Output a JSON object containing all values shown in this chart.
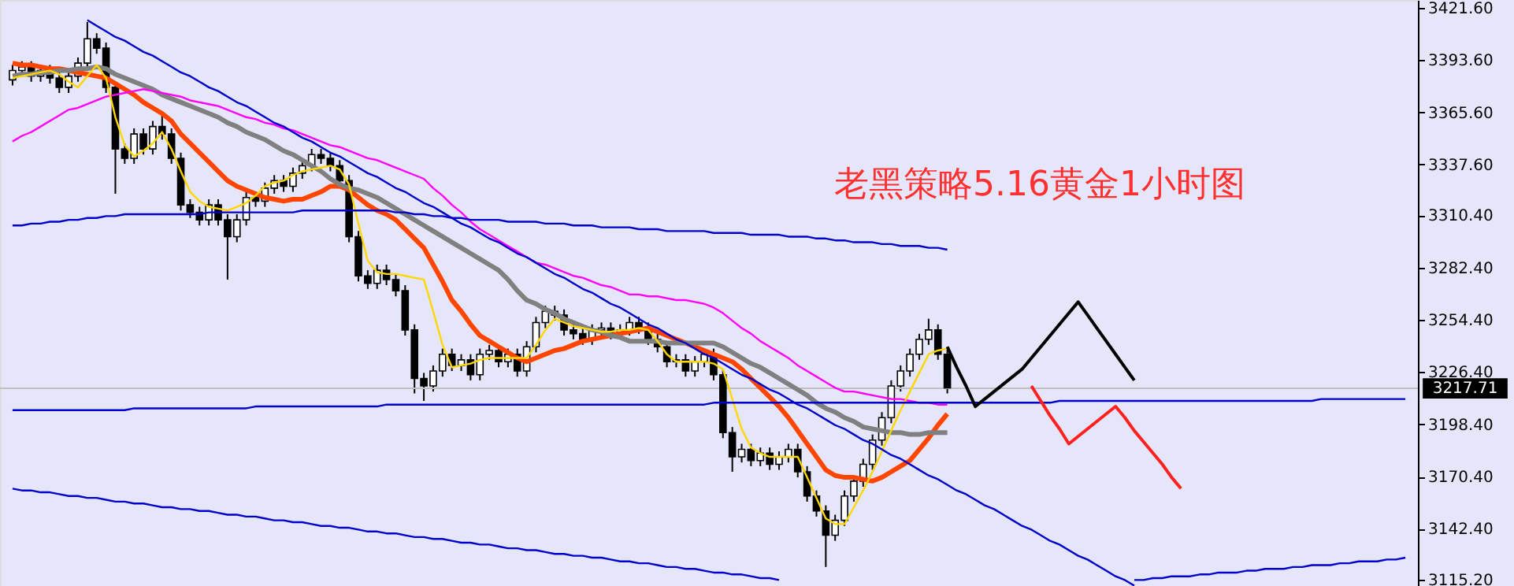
{
  "chart_data": {
    "type": "candlestick",
    "title": "老黑策略5.16黄金1小时图",
    "categories": [
      null,
      null,
      null,
      null,
      null,
      null,
      null,
      null,
      null,
      null,
      null,
      null,
      null,
      null,
      null,
      null,
      null,
      null,
      null,
      null,
      null,
      null,
      null,
      null,
      null,
      null,
      null,
      null,
      null,
      null,
      null,
      null,
      null,
      null,
      null,
      null,
      null,
      null,
      null,
      null,
      null,
      null,
      null,
      null,
      null,
      null,
      null,
      null,
      null,
      null,
      null,
      null,
      null,
      null,
      null,
      null,
      null,
      null,
      null,
      null,
      null,
      null,
      null,
      null,
      null,
      null,
      null,
      null,
      null,
      null,
      null,
      null,
      null,
      null,
      null,
      null,
      null,
      null,
      null,
      null,
      null,
      null,
      null,
      null,
      null,
      null,
      null,
      null,
      null,
      null,
      null,
      null,
      null,
      null,
      null,
      null,
      null,
      null,
      null,
      null,
      null,
      null,
      null,
      null,
      null,
      null,
      null,
      null,
      null,
      null,
      null,
      null,
      null,
      null,
      null,
      null,
      null,
      null,
      null,
      null,
      null,
      null,
      null,
      null,
      null,
      null,
      null,
      null,
      null,
      null,
      null,
      null,
      null,
      null,
      null,
      null,
      null,
      null,
      null,
      null,
      null,
      null,
      null,
      null,
      null,
      null,
      null,
      null,
      null,
      null
    ],
    "ohlc": [
      [
        3383,
        3391,
        3380,
        3388
      ],
      [
        3388,
        3393,
        3385,
        3390
      ],
      [
        3390,
        3393,
        3382,
        3385
      ],
      [
        3385,
        3391,
        3382,
        3388
      ],
      [
        3388,
        3391,
        3381,
        3384
      ],
      [
        3384,
        3387,
        3376,
        3379
      ],
      [
        3379,
        3388,
        3376,
        3385
      ],
      [
        3385,
        3395,
        3382,
        3392
      ],
      [
        3392,
        3414,
        3389,
        3405
      ],
      [
        3405,
        3408,
        3397,
        3400
      ],
      [
        3400,
        3403,
        3376,
        3379
      ],
      [
        3379,
        3382,
        3322,
        3346
      ],
      [
        3346,
        3349,
        3338,
        3341
      ],
      [
        3341,
        3357,
        3338,
        3354
      ],
      [
        3354,
        3357,
        3343,
        3346
      ],
      [
        3346,
        3361,
        3343,
        3358
      ],
      [
        3358,
        3365,
        3351,
        3354
      ],
      [
        3354,
        3357,
        3338,
        3341
      ],
      [
        3341,
        3344,
        3313,
        3316
      ],
      [
        3316,
        3319,
        3309,
        3312
      ],
      [
        3312,
        3315,
        3305,
        3308
      ],
      [
        3308,
        3319,
        3305,
        3316
      ],
      [
        3316,
        3319,
        3305,
        3308
      ],
      [
        3308,
        3311,
        3276,
        3299
      ],
      [
        3299,
        3311,
        3296,
        3308
      ],
      [
        3308,
        3323,
        3305,
        3320
      ],
      [
        3320,
        3323,
        3315,
        3318
      ],
      [
        3318,
        3328,
        3315,
        3325
      ],
      [
        3325,
        3332,
        3322,
        3329
      ],
      [
        3329,
        3332,
        3323,
        3326
      ],
      [
        3326,
        3336,
        3323,
        3333
      ],
      [
        3333,
        3340,
        3330,
        3337
      ],
      [
        3337,
        3346,
        3334,
        3343
      ],
      [
        3343,
        3346,
        3338,
        3341
      ],
      [
        3341,
        3344,
        3334,
        3337
      ],
      [
        3337,
        3340,
        3326,
        3329
      ],
      [
        3329,
        3332,
        3296,
        3299
      ],
      [
        3299,
        3302,
        3275,
        3278
      ],
      [
        3278,
        3281,
        3271,
        3274
      ],
      [
        3274,
        3284,
        3271,
        3281
      ],
      [
        3281,
        3284,
        3273,
        3276
      ],
      [
        3276,
        3279,
        3267,
        3270
      ],
      [
        3270,
        3273,
        3246,
        3249
      ],
      [
        3249,
        3252,
        3215,
        3223
      ],
      [
        3223,
        3226,
        3211,
        3219
      ],
      [
        3219,
        3230,
        3216,
        3227
      ],
      [
        3227,
        3239,
        3224,
        3236
      ],
      [
        3236,
        3239,
        3227,
        3230
      ],
      [
        3230,
        3236,
        3227,
        3233
      ],
      [
        3233,
        3236,
        3222,
        3225
      ],
      [
        3225,
        3239,
        3222,
        3236
      ],
      [
        3236,
        3241,
        3233,
        3238
      ],
      [
        3238,
        3241,
        3229,
        3232
      ],
      [
        3232,
        3239,
        3229,
        3236
      ],
      [
        3236,
        3239,
        3224,
        3227
      ],
      [
        3227,
        3243,
        3224,
        3240
      ],
      [
        3240,
        3256,
        3237,
        3253
      ],
      [
        3253,
        3262,
        3250,
        3259
      ],
      [
        3259,
        3262,
        3254,
        3257
      ],
      [
        3257,
        3260,
        3246,
        3249
      ],
      [
        3249,
        3252,
        3244,
        3247
      ],
      [
        3247,
        3250,
        3241,
        3244
      ],
      [
        3244,
        3252,
        3241,
        3249
      ],
      [
        3249,
        3253,
        3246,
        3250
      ],
      [
        3250,
        3253,
        3244,
        3247
      ],
      [
        3247,
        3252,
        3244,
        3249
      ],
      [
        3249,
        3256,
        3246,
        3253
      ],
      [
        3253,
        3256,
        3247,
        3250
      ],
      [
        3250,
        3253,
        3241,
        3244
      ],
      [
        3244,
        3247,
        3237,
        3240
      ],
      [
        3240,
        3243,
        3229,
        3232
      ],
      [
        3232,
        3236,
        3229,
        3233
      ],
      [
        3233,
        3236,
        3224,
        3227
      ],
      [
        3227,
        3235,
        3224,
        3232
      ],
      [
        3232,
        3239,
        3229,
        3236
      ],
      [
        3236,
        3239,
        3222,
        3225
      ],
      [
        3225,
        3228,
        3191,
        3194
      ],
      [
        3194,
        3197,
        3173,
        3181
      ],
      [
        3181,
        3188,
        3178,
        3185
      ],
      [
        3185,
        3188,
        3176,
        3179
      ],
      [
        3179,
        3186,
        3176,
        3183
      ],
      [
        3183,
        3186,
        3174,
        3177
      ],
      [
        3177,
        3184,
        3174,
        3181
      ],
      [
        3181,
        3188,
        3178,
        3185
      ],
      [
        3185,
        3188,
        3170,
        3173
      ],
      [
        3173,
        3176,
        3157,
        3160
      ],
      [
        3160,
        3163,
        3149,
        3152
      ],
      [
        3152,
        3155,
        3122,
        3139
      ],
      [
        3139,
        3150,
        3136,
        3147
      ],
      [
        3147,
        3163,
        3144,
        3160
      ],
      [
        3160,
        3171,
        3157,
        3168
      ],
      [
        3168,
        3180,
        3165,
        3177
      ],
      [
        3177,
        3193,
        3174,
        3190
      ],
      [
        3190,
        3205,
        3187,
        3202
      ],
      [
        3202,
        3222,
        3199,
        3219
      ],
      [
        3219,
        3230,
        3216,
        3227
      ],
      [
        3227,
        3239,
        3224,
        3236
      ],
      [
        3236,
        3247,
        3233,
        3244
      ],
      [
        3244,
        3255,
        3241,
        3249
      ],
      [
        3249,
        3252,
        3233,
        3236
      ],
      [
        3236,
        3239,
        3215,
        3218
      ],
      null,
      null,
      null,
      null,
      null,
      null,
      null,
      null,
      null,
      null,
      null,
      null,
      null,
      null,
      null,
      null,
      null,
      null,
      null,
      null,
      null,
      null,
      null,
      null,
      null,
      null,
      null,
      null,
      null,
      null,
      null,
      null,
      null,
      null,
      null,
      null,
      null,
      null,
      null,
      null,
      null,
      null,
      null,
      null,
      null,
      null,
      null,
      null,
      null
    ],
    "series": [
      {
        "type": "line",
        "color": "#ff4500",
        "values": [
          3392,
          3391,
          3391,
          3390,
          3389,
          3389,
          3388,
          3387,
          3386,
          3385,
          3384,
          3381,
          3378,
          3375,
          3371,
          3368,
          3365,
          3361,
          3354,
          3349,
          3344,
          3339,
          3334,
          3329,
          3326,
          3324,
          3322,
          3320,
          3319,
          3318,
          3319,
          3319,
          3321,
          3323,
          3326,
          3326,
          3324,
          3320,
          3316,
          3313,
          3311,
          3308,
          3303,
          3298,
          3293,
          3284,
          3275,
          3265,
          3259,
          3252,
          3246,
          3243,
          3240,
          3237,
          3234,
          3232,
          3234,
          3236,
          3238,
          3239,
          3241,
          3243,
          3244,
          3245,
          3246,
          3247,
          3248,
          3249,
          3250,
          3248,
          3246,
          3244,
          3242,
          3240,
          3238,
          3236,
          3234,
          3232,
          3228,
          3223,
          3218,
          3213,
          3208,
          3202,
          3195,
          3188,
          3181,
          3174,
          3171,
          3170,
          3170,
          3169,
          3168,
          3170,
          3173,
          3176,
          3179,
          3185,
          3191,
          3198,
          3204,
          null,
          null,
          null,
          null,
          null,
          null,
          null,
          null,
          null,
          null,
          null,
          null,
          null,
          null,
          null,
          null,
          null,
          null,
          null,
          null,
          null,
          null,
          null,
          null,
          null,
          null,
          null,
          null,
          null,
          null,
          null,
          null,
          null,
          null,
          null,
          null,
          null,
          null,
          null,
          null,
          null,
          null,
          null,
          null,
          null,
          null,
          null,
          null,
          null
        ]
      },
      {
        "type": "line",
        "color": "#808080",
        "values": [
          3385,
          3386,
          3386,
          3387,
          3387,
          3388,
          3388,
          3389,
          3389,
          3390,
          3389,
          3386,
          3384,
          3382,
          3380,
          3378,
          3375,
          3373,
          3371,
          3369,
          3367,
          3365,
          3363,
          3360,
          3358,
          3355,
          3353,
          3351,
          3348,
          3345,
          3343,
          3340,
          3337,
          3334,
          3330,
          3327,
          3325,
          3324,
          3322,
          3320,
          3317,
          3314,
          3311,
          3308,
          3305,
          3302,
          3299,
          3296,
          3293,
          3290,
          3287,
          3284,
          3281,
          3276,
          3270,
          3265,
          3263,
          3260,
          3258,
          3255,
          3253,
          3251,
          3249,
          3248,
          3246,
          3245,
          3243,
          3243,
          3243,
          3243,
          3242,
          3242,
          3242,
          3242,
          3242,
          3242,
          3240,
          3237,
          3234,
          3231,
          3229,
          3226,
          3223,
          3220,
          3217,
          3214,
          3210,
          3207,
          3205,
          3202,
          3200,
          3197,
          3196,
          3195,
          3194,
          3194,
          3193,
          3193,
          3194,
          3194,
          3194,
          null,
          null,
          null,
          null,
          null,
          null,
          null,
          null,
          null,
          null,
          null,
          null,
          null,
          null,
          null,
          null,
          null,
          null,
          null,
          null,
          null,
          null,
          null,
          null,
          null,
          null,
          null,
          null,
          null,
          null,
          null,
          null,
          null,
          null,
          null,
          null,
          null,
          null,
          null,
          null,
          null,
          null,
          null,
          null,
          null,
          null,
          null,
          null,
          null
        ]
      },
      {
        "type": "line",
        "color": "#ff00ff",
        "values": [
          3350,
          3353,
          3355,
          3358,
          3361,
          3364,
          3367,
          3368,
          3370,
          3372,
          3374,
          3375,
          3376,
          3377,
          3378,
          3377,
          3376,
          3375,
          3374,
          3372,
          3371,
          3370,
          3369,
          3367,
          3365,
          3363,
          3362,
          3360,
          3359,
          3357,
          3356,
          3354,
          3352,
          3350,
          3348,
          3347,
          3345,
          3343,
          3341,
          3340,
          3338,
          3336,
          3334,
          3332,
          3330,
          3325,
          3321,
          3316,
          3312,
          3307,
          3303,
          3300,
          3297,
          3294,
          3291,
          3288,
          3285,
          3284,
          3282,
          3280,
          3278,
          3277,
          3275,
          3273,
          3272,
          3270,
          3268,
          3268,
          3267,
          3267,
          3266,
          3265,
          3265,
          3264,
          3263,
          3261,
          3258,
          3254,
          3250,
          3247,
          3243,
          3240,
          3237,
          3234,
          3230,
          3227,
          3224,
          3221,
          3218,
          3216,
          3216,
          3215,
          3214,
          3213,
          3212,
          3212,
          3211,
          3210,
          3210,
          3209,
          3209,
          null,
          null,
          null,
          null,
          null,
          null,
          null,
          null,
          null,
          null,
          null,
          null,
          null,
          null,
          null,
          null,
          null,
          null,
          null,
          null,
          null,
          null,
          null,
          null,
          null,
          null,
          null,
          null,
          null,
          null,
          null,
          null,
          null,
          null,
          null,
          null,
          null,
          null,
          null,
          null,
          null,
          null,
          null,
          null,
          null,
          null,
          null,
          null,
          null
        ]
      },
      {
        "type": "line",
        "color": "#ffd700",
        "values": [
          3384,
          3385,
          3386,
          3387,
          3388,
          3386,
          3382,
          3379,
          3385,
          3391,
          3384,
          3363,
          3348,
          3342,
          3345,
          3349,
          3355,
          3346,
          3334,
          3323,
          3318,
          3315,
          3314,
          3313,
          3315,
          3317,
          3321,
          3326,
          3328,
          3329,
          3332,
          3334,
          3335,
          3336,
          3337,
          3335,
          3327,
          3306,
          3286,
          3280,
          3279,
          3279,
          3278,
          3277,
          3276,
          3259,
          3241,
          3229,
          3230,
          3231,
          3233,
          3234,
          3234,
          3234,
          3234,
          3234,
          3241,
          3249,
          3255,
          3253,
          3251,
          3250,
          3249,
          3248,
          3248,
          3249,
          3249,
          3250,
          3249,
          3243,
          3236,
          3232,
          3232,
          3232,
          3232,
          3231,
          3228,
          3212,
          3196,
          3186,
          3183,
          3181,
          3181,
          3181,
          3181,
          3170,
          3159,
          3148,
          3145,
          3145,
          3154,
          3163,
          3173,
          3184,
          3195,
          3206,
          3216,
          3226,
          3236,
          3238,
          3239,
          null,
          null,
          null,
          null,
          null,
          null,
          null,
          null,
          null,
          null,
          null,
          null,
          null,
          null,
          null,
          null,
          null,
          null,
          null,
          null,
          null,
          null,
          null,
          null,
          null,
          null,
          null,
          null,
          null,
          null,
          null,
          null,
          null,
          null,
          null,
          null,
          null,
          null,
          null,
          null,
          null,
          null,
          null,
          null,
          null,
          null,
          null,
          null,
          null
        ]
      },
      {
        "type": "line",
        "color": "#0000cd",
        "values": [
          null,
          null,
          null,
          null,
          null,
          null,
          null,
          null,
          3415,
          3412,
          3409,
          3406,
          3404,
          3401,
          3398,
          3396,
          3393,
          3390,
          3387,
          3385,
          3382,
          3379,
          3377,
          3374,
          3371,
          3369,
          3366,
          3363,
          3360,
          3358,
          3355,
          3352,
          3350,
          3347,
          3344,
          3342,
          3339,
          3336,
          3333,
          3331,
          3328,
          3325,
          3323,
          3320,
          3317,
          3315,
          3312,
          3309,
          3306,
          3304,
          3301,
          3298,
          3296,
          3293,
          3290,
          3288,
          3285,
          3282,
          3279,
          3277,
          3274,
          3271,
          3269,
          3266,
          3263,
          3261,
          3258,
          3255,
          3252,
          3250,
          3247,
          3244,
          3242,
          3239,
          3236,
          3234,
          3231,
          3228,
          3225,
          3223,
          3220,
          3217,
          3215,
          3212,
          3209,
          3207,
          3204,
          3201,
          3198,
          3196,
          3193,
          3190,
          3188,
          3185,
          3182,
          3180,
          3177,
          3174,
          3171,
          3169,
          3166,
          3163,
          3161,
          3158,
          3155,
          3153,
          3150,
          3147,
          3144,
          3142,
          3139,
          3136,
          3134,
          3131,
          3128,
          3126,
          3123,
          3120,
          3117,
          3115,
          3112,
          null,
          null,
          null,
          null,
          null,
          null,
          null,
          null,
          null,
          null,
          null,
          null,
          null,
          null,
          null,
          null,
          null,
          null,
          null,
          null,
          null,
          null,
          null,
          null,
          null,
          null,
          null,
          null,
          null
        ]
      },
      {
        "type": "line",
        "color": "#0000cd",
        "values": [
          3206,
          3206,
          3206,
          3206,
          3206,
          3206,
          3206,
          3206,
          3206,
          3206,
          3206,
          3206,
          3206,
          3207,
          3207,
          3207,
          3207,
          3207,
          3207,
          3207,
          3207,
          3207,
          3207,
          3207,
          3207,
          3207,
          3208,
          3208,
          3208,
          3208,
          3208,
          3208,
          3208,
          3208,
          3208,
          3208,
          3208,
          3208,
          3208,
          3208,
          3209,
          3209,
          3209,
          3209,
          3209,
          3209,
          3209,
          3209,
          3209,
          3209,
          3209,
          3209,
          3209,
          3209,
          3209,
          3209,
          3209,
          3209,
          3209,
          3209,
          3209,
          3209,
          3209,
          3209,
          3209,
          3209,
          3209,
          3209,
          3209,
          3209,
          3209,
          3209,
          3209,
          3209,
          3209,
          3210,
          3210,
          3210,
          3210,
          3210,
          3210,
          3210,
          3210,
          3210,
          3210,
          3210,
          3210,
          3210,
          3210,
          3210,
          3210,
          3210,
          3210,
          3210,
          3210,
          3210,
          3210,
          3210,
          3210,
          3210,
          3210,
          3210,
          3210,
          3210,
          3210,
          3210,
          3210,
          3210,
          3210,
          3210,
          3210,
          3210,
          3211,
          3211,
          3211,
          3211,
          3211,
          3211,
          3211,
          3211,
          3211,
          3211,
          3211,
          3211,
          3211,
          3211,
          3211,
          3211,
          3211,
          3211,
          3211,
          3211,
          3211,
          3211,
          3211,
          3211,
          3211,
          3211,
          3211,
          3211,
          3212,
          3212,
          3212,
          3212,
          3212,
          3212,
          3212,
          3212,
          3212,
          3212
        ]
      },
      {
        "type": "line",
        "color": "#0000cd",
        "values": [
          3305,
          3305,
          3306,
          3306,
          3307,
          3307,
          3308,
          3308,
          3309,
          3309,
          3310,
          3310,
          3311,
          3311,
          3311,
          3311,
          3311,
          3311,
          3311,
          3311,
          3311,
          3312,
          3312,
          3312,
          3312,
          3312,
          3312,
          3312,
          3312,
          3312,
          3312,
          3313,
          3313,
          3313,
          3313,
          3313,
          3313,
          3313,
          3313,
          3313,
          3313,
          3312,
          3312,
          3311,
          3311,
          3310,
          3310,
          3309,
          3309,
          3308,
          3308,
          3308,
          3308,
          3307,
          3307,
          3307,
          3307,
          3306,
          3306,
          3306,
          3305,
          3305,
          3305,
          3304,
          3304,
          3304,
          3304,
          3303,
          3303,
          3303,
          3302,
          3302,
          3302,
          3302,
          3302,
          3301,
          3301,
          3301,
          3301,
          3300,
          3300,
          3300,
          3300,
          3299,
          3299,
          3299,
          3298,
          3298,
          3297,
          3297,
          3296,
          3296,
          3296,
          3295,
          3295,
          3294,
          3294,
          3294,
          3293,
          3293,
          3292,
          null,
          null,
          null,
          null,
          null,
          null,
          null,
          null,
          null,
          null,
          null,
          null,
          null,
          null,
          null,
          null,
          null,
          null,
          null,
          null,
          null,
          null,
          null,
          null,
          null,
          null,
          null,
          null,
          null,
          null,
          null,
          null,
          null,
          null,
          null,
          null,
          null,
          null,
          null,
          null,
          null,
          null,
          null,
          null,
          null,
          null,
          null,
          null,
          null
        ]
      },
      {
        "type": "line",
        "color": "#0000cd",
        "values": [
          3164,
          3163,
          3163,
          3162,
          3162,
          3161,
          3160,
          3160,
          3159,
          3159,
          3158,
          3157,
          3157,
          3156,
          3156,
          3155,
          3154,
          3154,
          3153,
          3153,
          3152,
          3152,
          3151,
          3150,
          3150,
          3149,
          3149,
          3148,
          3147,
          3147,
          3146,
          3146,
          3145,
          3144,
          3144,
          3143,
          3143,
          3142,
          3141,
          3141,
          3140,
          3140,
          3139,
          3138,
          3138,
          3137,
          3137,
          3136,
          3135,
          3135,
          3134,
          3134,
          3133,
          3132,
          3132,
          3131,
          3131,
          3130,
          3129,
          3129,
          3128,
          3128,
          3127,
          3127,
          3126,
          3125,
          3125,
          3124,
          3124,
          3123,
          3122,
          3122,
          3121,
          3121,
          3120,
          3119,
          3119,
          3118,
          3118,
          3117,
          3116,
          3116,
          3115,
          null,
          null,
          null,
          null,
          null,
          null,
          null,
          null,
          null,
          null,
          null,
          null,
          null,
          null,
          null,
          null,
          null,
          null,
          null,
          null,
          null,
          null,
          null,
          null,
          null,
          null,
          null,
          null,
          null,
          null,
          null,
          null,
          null,
          null,
          null,
          null,
          null,
          null,
          null,
          null,
          null,
          null,
          null,
          null,
          null,
          null,
          null,
          null,
          null,
          null,
          null,
          null,
          null,
          null,
          null,
          null,
          null,
          null,
          null,
          null,
          null,
          null,
          null,
          null,
          null,
          null,
          null
        ]
      },
      {
        "type": "line",
        "color": "#0000cd",
        "values": [
          null,
          null,
          null,
          null,
          null,
          null,
          null,
          null,
          null,
          null,
          null,
          null,
          null,
          null,
          null,
          null,
          null,
          null,
          null,
          null,
          null,
          null,
          null,
          null,
          null,
          null,
          null,
          null,
          null,
          null,
          null,
          null,
          null,
          null,
          null,
          null,
          null,
          null,
          null,
          null,
          null,
          null,
          null,
          null,
          null,
          null,
          null,
          null,
          null,
          null,
          null,
          null,
          null,
          null,
          null,
          null,
          null,
          null,
          null,
          null,
          null,
          null,
          null,
          null,
          null,
          null,
          null,
          null,
          null,
          null,
          null,
          null,
          null,
          null,
          null,
          null,
          null,
          null,
          null,
          null,
          null,
          null,
          null,
          null,
          null,
          null,
          null,
          null,
          null,
          null,
          null,
          null,
          null,
          null,
          null,
          null,
          null,
          null,
          null,
          null,
          null,
          null,
          null,
          null,
          null,
          null,
          null,
          null,
          null,
          null,
          null,
          null,
          null,
          null,
          null,
          null,
          null,
          null,
          null,
          null,
          3115,
          3115,
          3116,
          3116,
          3117,
          3117,
          3117,
          3118,
          3118,
          3119,
          3119,
          3119,
          3120,
          3120,
          3121,
          3121,
          3121,
          3122,
          3122,
          3123,
          3123,
          3123,
          3124,
          3124,
          3125,
          3125,
          3125,
          3126,
          3126,
          3127
        ]
      },
      {
        "type": "line",
        "color": "#000000",
        "values": [
          null,
          null,
          null,
          null,
          null,
          null,
          null,
          null,
          null,
          null,
          null,
          null,
          null,
          null,
          null,
          null,
          null,
          null,
          null,
          null,
          null,
          null,
          null,
          null,
          null,
          null,
          null,
          null,
          null,
          null,
          null,
          null,
          null,
          null,
          null,
          null,
          null,
          null,
          null,
          null,
          null,
          null,
          null,
          null,
          null,
          null,
          null,
          null,
          null,
          null,
          null,
          null,
          null,
          null,
          null,
          null,
          null,
          null,
          null,
          null,
          null,
          null,
          null,
          null,
          null,
          null,
          null,
          null,
          null,
          null,
          null,
          null,
          null,
          null,
          null,
          null,
          null,
          null,
          null,
          null,
          null,
          null,
          null,
          null,
          null,
          null,
          null,
          null,
          null,
          null,
          null,
          null,
          null,
          null,
          null,
          null,
          null,
          null,
          null,
          null,
          3240,
          3229,
          3219,
          3208,
          3212,
          3216,
          3220,
          3224,
          3228,
          3234,
          3240,
          3246,
          3252,
          3258,
          3264,
          3257,
          3250,
          3243,
          3236,
          3229,
          3222,
          null,
          null,
          null,
          null,
          null,
          null,
          null,
          null,
          null,
          null,
          null,
          null,
          null,
          null,
          null,
          null,
          null,
          null,
          null,
          null,
          null,
          null,
          null,
          null,
          null,
          null,
          null,
          null,
          null
        ]
      },
      {
        "type": "line",
        "color": "#ff2020",
        "values": [
          null,
          null,
          null,
          null,
          null,
          null,
          null,
          null,
          null,
          null,
          null,
          null,
          null,
          null,
          null,
          null,
          null,
          null,
          null,
          null,
          null,
          null,
          null,
          null,
          null,
          null,
          null,
          null,
          null,
          null,
          null,
          null,
          null,
          null,
          null,
          null,
          null,
          null,
          null,
          null,
          null,
          null,
          null,
          null,
          null,
          null,
          null,
          null,
          null,
          null,
          null,
          null,
          null,
          null,
          null,
          null,
          null,
          null,
          null,
          null,
          null,
          null,
          null,
          null,
          null,
          null,
          null,
          null,
          null,
          null,
          null,
          null,
          null,
          null,
          null,
          null,
          null,
          null,
          null,
          null,
          null,
          null,
          null,
          null,
          null,
          null,
          null,
          null,
          null,
          null,
          null,
          null,
          null,
          null,
          null,
          null,
          null,
          null,
          null,
          null,
          null,
          null,
          null,
          null,
          null,
          null,
          null,
          null,
          null,
          3219,
          3211,
          3203,
          3196,
          3188,
          3192,
          3196,
          3200,
          3204,
          3208,
          3202,
          3195,
          3189,
          3183,
          3177,
          3170,
          3164,
          null,
          null,
          null,
          null,
          null,
          null,
          null,
          null,
          null,
          null,
          null,
          null,
          null,
          null,
          null,
          null,
          null,
          null,
          null,
          null,
          null,
          null,
          null,
          null
        ]
      }
    ],
    "ref_lines": [
      {
        "axis": "y",
        "value": 3217.71,
        "label": "3217.71",
        "color": "#c0c0c0"
      }
    ],
    "ylim": [
      3111.8,
      3425.8
    ],
    "yticks": [
      {
        "value": 3421.6,
        "label": "3421.60"
      },
      {
        "value": 3393.6,
        "label": "3393.60"
      },
      {
        "value": 3365.6,
        "label": "3365.60"
      },
      {
        "value": 3337.6,
        "label": "3337.60"
      },
      {
        "value": 3310.4,
        "label": "3310.40"
      },
      {
        "value": 3282.4,
        "label": "3282.40"
      },
      {
        "value": 3254.4,
        "label": "3254.40"
      },
      {
        "value": 3226.4,
        "label": "3226.40"
      },
      {
        "value": 3198.4,
        "label": "3198.40"
      },
      {
        "value": 3170.4,
        "label": "3170.40"
      },
      {
        "value": 3142.4,
        "label": "3142.40"
      },
      {
        "value": 3115.2,
        "label": "3115.20"
      }
    ],
    "tick_labels": "y",
    "grid": false
  }
}
